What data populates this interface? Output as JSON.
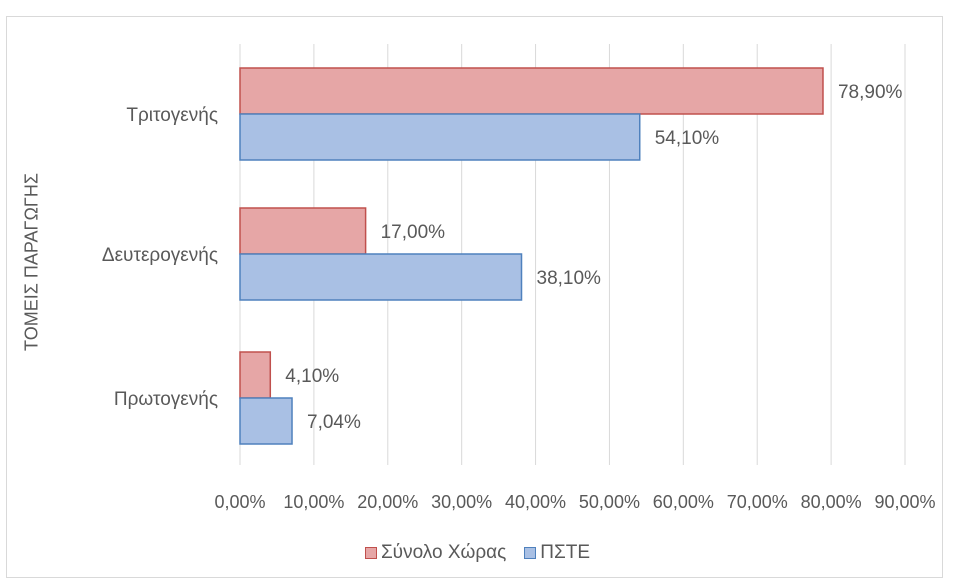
{
  "chart_data": {
    "type": "bar",
    "orientation": "horizontal",
    "categories": [
      "Τριτογενής",
      "Δευτερογενής",
      "Πρωτογενής"
    ],
    "series": [
      {
        "name": "Σύνολο Χώρας",
        "values": [
          78.9,
          17.0,
          4.1
        ],
        "labels": [
          "78,90%",
          "17,00%",
          "4,10%"
        ],
        "color": "#e6a6a6",
        "border": "#c0504d"
      },
      {
        "name": "ΠΣΤΕ",
        "values": [
          54.1,
          38.1,
          7.04
        ],
        "labels": [
          "54,10%",
          "38,10%",
          "7,04%"
        ],
        "color": "#a9c0e4",
        "border": "#4f81bd"
      }
    ],
    "ylabel": "ΤΟΜΕΙΣ ΠΑΡΑΓΩΓΗΣ",
    "xlim": [
      0,
      90
    ],
    "xticks": [
      "0,00%",
      "10,00%",
      "20,00%",
      "30,00%",
      "40,00%",
      "50,00%",
      "60,00%",
      "70,00%",
      "80,00%",
      "90,00%"
    ],
    "grid": true,
    "legend_position": "bottom"
  }
}
